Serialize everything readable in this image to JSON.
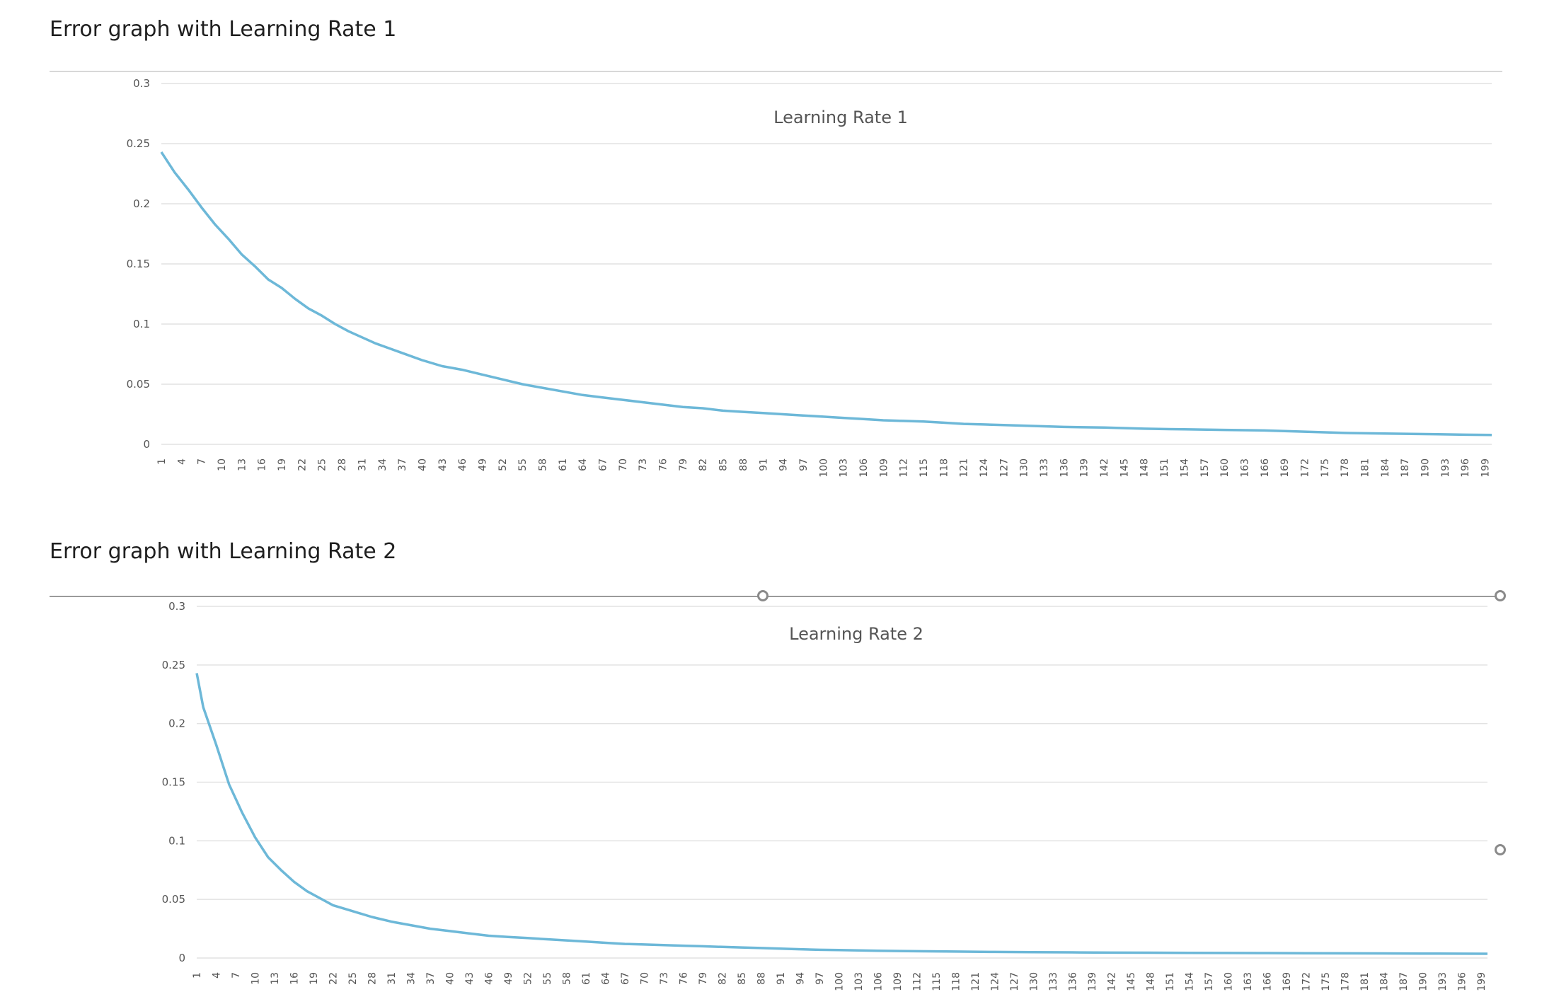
{
  "sections": [
    {
      "heading": "Error graph with Learning Rate 1"
    },
    {
      "heading": "Error graph with Learning Rate 2"
    }
  ],
  "colors": {
    "line": "#6db8d8",
    "grid": "#e2e2e2",
    "axis_text": "#555555",
    "title_text": "#555555"
  },
  "chart_data": [
    {
      "type": "line",
      "title": "Learning Rate 1",
      "xlabel": "",
      "ylabel": "",
      "ylim": [
        0,
        0.3
      ],
      "yticks": [
        0,
        0.05,
        0.1,
        0.15,
        0.2,
        0.25,
        0.3
      ],
      "ytick_labels": [
        "0",
        "0.05",
        "0.1",
        "0.15",
        "0.2",
        "0.25",
        "0.3"
      ],
      "x_range": [
        1,
        200
      ],
      "xtick_labels": [
        "1",
        "4",
        "7",
        "10",
        "13",
        "16",
        "19",
        "22",
        "25",
        "28",
        "31",
        "34",
        "37",
        "40",
        "43",
        "46",
        "49",
        "52",
        "55",
        "58",
        "61",
        "64",
        "67",
        "70",
        "73",
        "76",
        "79",
        "82",
        "85",
        "88",
        "91",
        "94",
        "97",
        "100",
        "103",
        "106",
        "109",
        "112",
        "115",
        "118",
        "121",
        "124",
        "127",
        "130",
        "133",
        "136",
        "139",
        "142",
        "145",
        "148",
        "151",
        "154",
        "157",
        "160",
        "163",
        "166",
        "169",
        "172",
        "175",
        "178",
        "181",
        "184",
        "187",
        "190",
        "193",
        "196",
        "199"
      ],
      "grid": true,
      "series": [
        {
          "name": "Learning Rate 1",
          "points": [
            [
              1,
              0.243
            ],
            [
              3,
              0.226
            ],
            [
              5,
              0.212
            ],
            [
              7,
              0.197
            ],
            [
              9,
              0.183
            ],
            [
              11,
              0.171
            ],
            [
              13,
              0.158
            ],
            [
              15,
              0.148
            ],
            [
              17,
              0.137
            ],
            [
              19,
              0.13
            ],
            [
              21,
              0.121
            ],
            [
              23,
              0.113
            ],
            [
              25,
              0.107
            ],
            [
              27,
              0.1
            ],
            [
              29,
              0.094
            ],
            [
              31,
              0.089
            ],
            [
              33,
              0.084
            ],
            [
              35,
              0.08
            ],
            [
              37,
              0.076
            ],
            [
              40,
              0.07
            ],
            [
              43,
              0.065
            ],
            [
              46,
              0.062
            ],
            [
              49,
              0.058
            ],
            [
              52,
              0.054
            ],
            [
              55,
              0.05
            ],
            [
              58,
              0.047
            ],
            [
              61,
              0.044
            ],
            [
              64,
              0.041
            ],
            [
              67,
              0.039
            ],
            [
              70,
              0.037
            ],
            [
              73,
              0.035
            ],
            [
              76,
              0.033
            ],
            [
              79,
              0.031
            ],
            [
              82,
              0.03
            ],
            [
              85,
              0.028
            ],
            [
              88,
              0.027
            ],
            [
              91,
              0.026
            ],
            [
              94,
              0.025
            ],
            [
              97,
              0.024
            ],
            [
              100,
              0.023
            ],
            [
              103,
              0.022
            ],
            [
              106,
              0.021
            ],
            [
              109,
              0.02
            ],
            [
              112,
              0.0195
            ],
            [
              115,
              0.019
            ],
            [
              118,
              0.018
            ],
            [
              121,
              0.017
            ],
            [
              124,
              0.0165
            ],
            [
              127,
              0.016
            ],
            [
              130,
              0.0155
            ],
            [
              136,
              0.0145
            ],
            [
              142,
              0.014
            ],
            [
              148,
              0.013
            ],
            [
              154,
              0.0125
            ],
            [
              160,
              0.012
            ],
            [
              166,
              0.0115
            ],
            [
              172,
              0.0105
            ],
            [
              178,
              0.0095
            ],
            [
              184,
              0.009
            ],
            [
              190,
              0.0085
            ],
            [
              196,
              0.008
            ],
            [
              200,
              0.0078
            ]
          ]
        }
      ]
    },
    {
      "type": "line",
      "title": "Learning Rate 2",
      "xlabel": "",
      "ylabel": "",
      "ylim": [
        0,
        0.3
      ],
      "yticks": [
        0,
        0.05,
        0.1,
        0.15,
        0.2,
        0.25,
        0.3
      ],
      "ytick_labels": [
        "0",
        "0.05",
        "0.1",
        "0.15",
        "0.2",
        "0.25",
        "0.3"
      ],
      "x_range": [
        1,
        200
      ],
      "xtick_labels": [
        "1",
        "4",
        "7",
        "10",
        "13",
        "16",
        "19",
        "22",
        "25",
        "28",
        "31",
        "34",
        "37",
        "40",
        "43",
        "46",
        "49",
        "52",
        "55",
        "58",
        "61",
        "64",
        "67",
        "70",
        "73",
        "76",
        "79",
        "82",
        "85",
        "88",
        "91",
        "94",
        "97",
        "100",
        "103",
        "106",
        "109",
        "112",
        "115",
        "118",
        "121",
        "124",
        "127",
        "130",
        "133",
        "136",
        "139",
        "142",
        "145",
        "148",
        "151",
        "154",
        "157",
        "160",
        "163",
        "166",
        "169",
        "172",
        "175",
        "178",
        "181",
        "184",
        "187",
        "190",
        "193",
        "196",
        "199"
      ],
      "grid": true,
      "series": [
        {
          "name": "Learning Rate 2",
          "points": [
            [
              1,
              0.243
            ],
            [
              2,
              0.214
            ],
            [
              4,
              0.182
            ],
            [
              6,
              0.148
            ],
            [
              8,
              0.124
            ],
            [
              10,
              0.103
            ],
            [
              12,
              0.086
            ],
            [
              14,
              0.075
            ],
            [
              16,
              0.065
            ],
            [
              18,
              0.057
            ],
            [
              20,
              0.051
            ],
            [
              22,
              0.045
            ],
            [
              25,
              0.04
            ],
            [
              28,
              0.035
            ],
            [
              31,
              0.031
            ],
            [
              34,
              0.028
            ],
            [
              37,
              0.025
            ],
            [
              40,
              0.023
            ],
            [
              43,
              0.021
            ],
            [
              46,
              0.019
            ],
            [
              49,
              0.018
            ],
            [
              52,
              0.017
            ],
            [
              55,
              0.016
            ],
            [
              58,
              0.015
            ],
            [
              61,
              0.014
            ],
            [
              64,
              0.013
            ],
            [
              67,
              0.012
            ],
            [
              70,
              0.0115
            ],
            [
              73,
              0.011
            ],
            [
              76,
              0.0105
            ],
            [
              79,
              0.01
            ],
            [
              82,
              0.0095
            ],
            [
              85,
              0.009
            ],
            [
              88,
              0.0085
            ],
            [
              91,
              0.008
            ],
            [
              94,
              0.0075
            ],
            [
              97,
              0.007
            ],
            [
              100,
              0.0068
            ],
            [
              106,
              0.0062
            ],
            [
              112,
              0.0058
            ],
            [
              118,
              0.0055
            ],
            [
              124,
              0.0052
            ],
            [
              130,
              0.005
            ],
            [
              136,
              0.0048
            ],
            [
              142,
              0.0046
            ],
            [
              148,
              0.0045
            ],
            [
              154,
              0.0044
            ],
            [
              160,
              0.0043
            ],
            [
              166,
              0.0042
            ],
            [
              172,
              0.0041
            ],
            [
              178,
              0.004
            ],
            [
              184,
              0.0039
            ],
            [
              190,
              0.0038
            ],
            [
              196,
              0.0037
            ],
            [
              200,
              0.0036
            ]
          ]
        }
      ]
    }
  ]
}
